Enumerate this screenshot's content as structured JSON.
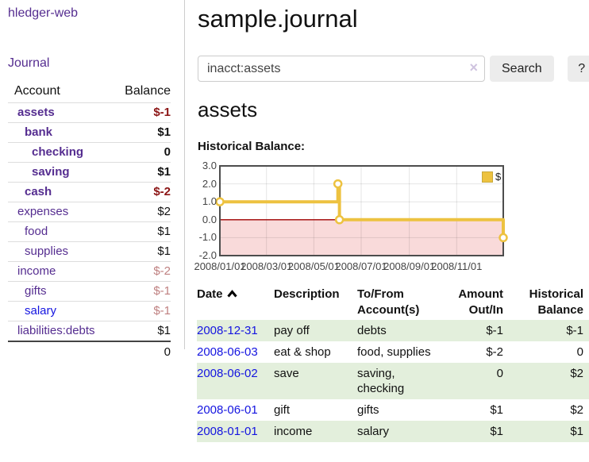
{
  "brand": "hledger-web",
  "sidebar": {
    "journal_link": "Journal",
    "accounts": {
      "col_account": "Account",
      "col_balance": "Balance",
      "rows": [
        {
          "name": "assets",
          "depth": 1,
          "emph": true,
          "balance": "$-1",
          "tone": "neg"
        },
        {
          "name": "bank",
          "depth": 2,
          "emph": true,
          "balance": "$1",
          "tone": "pos"
        },
        {
          "name": "checking",
          "depth": 3,
          "emph": true,
          "balance": "0",
          "tone": "pos"
        },
        {
          "name": "saving",
          "depth": 3,
          "emph": true,
          "balance": "$1",
          "tone": "pos"
        },
        {
          "name": "cash",
          "depth": 2,
          "emph": true,
          "balance": "$-2",
          "tone": "neg"
        },
        {
          "name": "expenses",
          "depth": 1,
          "emph": false,
          "balance": "$2",
          "tone": "pos"
        },
        {
          "name": "food",
          "depth": 2,
          "emph": false,
          "balance": "$1",
          "tone": "pos"
        },
        {
          "name": "supplies",
          "depth": 2,
          "emph": false,
          "balance": "$1",
          "tone": "pos"
        },
        {
          "name": "income",
          "depth": 1,
          "emph": false,
          "balance": "$-2",
          "tone": "dim"
        },
        {
          "name": "gifts",
          "depth": 2,
          "emph": false,
          "balance": "$-1",
          "tone": "dim"
        },
        {
          "name": "salary",
          "depth": 2,
          "emph": false,
          "balance": "$-1",
          "tone": "dim",
          "link_tone": "unvisited"
        },
        {
          "name": "liabilities:debts",
          "depth": 1,
          "emph": false,
          "balance": "$1",
          "tone": "pos"
        }
      ],
      "total": "0"
    }
  },
  "main": {
    "title": "sample.journal",
    "search": {
      "value": "inacct:assets",
      "clear_icon": "×",
      "search_button": "Search",
      "help_button": "?"
    },
    "account_heading": "assets",
    "chart_title": "Historical Balance:"
  },
  "chart_data": {
    "type": "line",
    "title": "Historical Balance",
    "step": true,
    "series": [
      {
        "name": "$",
        "color": "#edc240",
        "points": [
          [
            "2008-01-01",
            1.0
          ],
          [
            "2008-06-01",
            2.0
          ],
          [
            "2008-06-03",
            0.0
          ],
          [
            "2008-12-31",
            -1.0
          ]
        ]
      }
    ],
    "x_range": [
      "2008-01-01",
      "2008-12-31"
    ],
    "x_tick_labels": [
      "2008/01/01",
      "2008/03/01",
      "2008/05/01",
      "2008/07/01",
      "2008/09/01",
      "2008/11/01"
    ],
    "y_ticks": [
      3.0,
      2.0,
      1.0,
      0.0,
      -1.0,
      -2.0
    ],
    "ylim": [
      -2.0,
      3.0
    ],
    "grid": true,
    "legend": {
      "label": "$",
      "position": "top-right"
    },
    "negative_region_color": "#f9dada",
    "zero_line_color": "#a00000",
    "border_color": "#4d4d4d",
    "marker_fill": "#ffffff"
  },
  "register": {
    "headers": {
      "date": "Date",
      "description": "Description",
      "account": "To/From Account(s)",
      "amount": "Amount Out/In",
      "balance": "Historical Balance"
    },
    "sort": {
      "column": "date",
      "direction": "ascending",
      "icon": "chevron-up"
    },
    "rows": [
      {
        "date": "2008-12-31",
        "description": "pay off",
        "account": "debts",
        "amount": "$-1",
        "amount_tone": "neg",
        "balance": "$-1",
        "balance_tone": "neg"
      },
      {
        "date": "2008-06-03",
        "description": "eat & shop",
        "account": "food, supplies",
        "amount": "$-2",
        "amount_tone": "neg",
        "balance": "0",
        "balance_tone": "pos"
      },
      {
        "date": "2008-06-02",
        "description": "save",
        "account": "saving, checking",
        "amount": "0",
        "amount_tone": "pos",
        "balance": "$2",
        "balance_tone": "pos"
      },
      {
        "date": "2008-06-01",
        "description": "gift",
        "account": "gifts",
        "amount": "$1",
        "amount_tone": "pos",
        "balance": "$2",
        "balance_tone": "pos"
      },
      {
        "date": "2008-01-01",
        "description": "income",
        "account": "salary",
        "amount": "$1",
        "amount_tone": "pos",
        "balance": "$1",
        "balance_tone": "pos"
      }
    ]
  },
  "colors": {
    "link_purple": "#552d90",
    "link_blue": "#1414e0",
    "negative_red": "#8b1414",
    "negative_dim": "#bf8080",
    "row_stripe_green": "#e3efdc",
    "series_gold": "#edc240"
  }
}
